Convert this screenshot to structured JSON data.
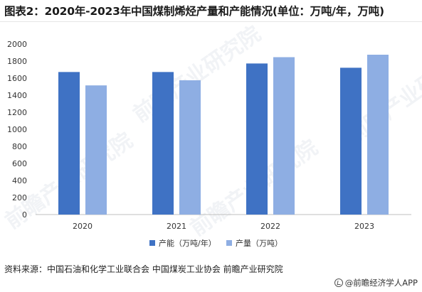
{
  "title": "图表2：2020年-2023年中国煤制烯烃产量和产能情况(单位：万吨/年，万吨)",
  "source_text": "资料来源：中国石油和化学工业联合会 中国煤炭工业协会 前瞻产业研究院",
  "brand_text": "@前瞻经济学人APP",
  "watermark_text": "前瞻产业研究院",
  "chart_data": {
    "type": "bar",
    "categories": [
      "2020",
      "2021",
      "2022",
      "2023"
    ],
    "series": [
      {
        "name": "产能（万吨/年）",
        "color": "#3f72c4",
        "values": [
          1672,
          1672,
          1772,
          1722
        ]
      },
      {
        "name": "产量（万吨）",
        "color": "#8eaee3",
        "values": [
          1515,
          1575,
          1846,
          1875
        ]
      }
    ],
    "title": "",
    "xlabel": "",
    "ylabel": "",
    "ylim": [
      0,
      2000
    ],
    "yticks": [
      0,
      200,
      400,
      600,
      800,
      1000,
      1200,
      1400,
      1600,
      1800,
      2000
    ],
    "ytick_labels": [
      "0",
      "200",
      "400",
      "600",
      "800",
      "1000",
      "1200",
      "1400",
      "1600",
      "1800",
      "2000"
    ],
    "grid": false,
    "legend_position": "bottom-center"
  }
}
